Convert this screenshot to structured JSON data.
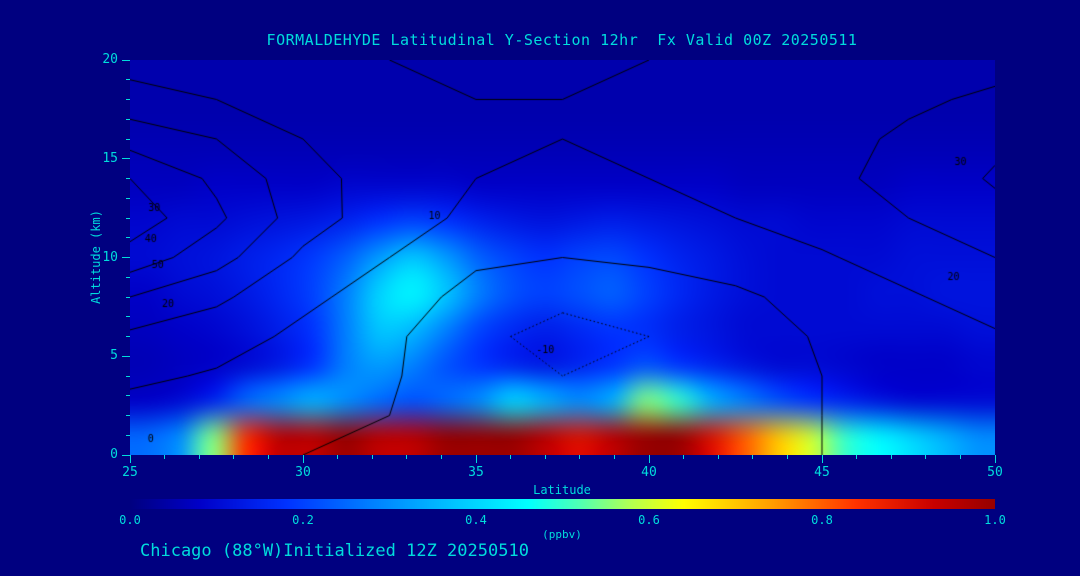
{
  "colors": {
    "background": "#000080",
    "text": "#00dcdc",
    "contour": "#000000"
  },
  "header": {
    "title": "FORMALDEHYDE Latitudinal Y-Section 12hr  Fx Valid 00Z 20250511"
  },
  "footer": {
    "annotation": "Chicago (88°W)Initialized 12Z 20250510"
  },
  "axes": {
    "x": {
      "label": "Latitude",
      "min": 25,
      "max": 50,
      "major_ticks": [
        25,
        30,
        35,
        40,
        45,
        50
      ],
      "minor_step": 1
    },
    "y": {
      "label": "Altitude (km)",
      "min": 0,
      "max": 20,
      "major_ticks": [
        0,
        5,
        10,
        15,
        20
      ],
      "minor_step": 1
    }
  },
  "colorbar": {
    "units": "(ppbv)",
    "tick_labels": [
      "0.0",
      "0.2",
      "0.4",
      "0.6",
      "0.8",
      "1.0"
    ],
    "min": 0,
    "max": 1
  },
  "chart_data": {
    "type": "heatmap",
    "title": "FORMALDEHYDE Latitudinal Y-Section 12hr Fx Valid 00Z 20250511",
    "xlabel": "Latitude",
    "ylabel": "Altitude (km)",
    "units": "ppbv",
    "xlim": [
      25,
      50
    ],
    "ylim": [
      0,
      20
    ],
    "value_range": [
      0.0,
      1.0
    ],
    "x_lat": [
      25,
      26,
      27,
      28,
      29,
      30,
      31,
      32,
      33,
      34,
      35,
      36,
      37,
      38,
      39,
      40,
      41,
      42,
      43,
      44,
      45,
      46,
      47,
      48,
      49,
      50
    ],
    "y_km": [
      0,
      2,
      4,
      6,
      8,
      10,
      12,
      14,
      16,
      18,
      20
    ],
    "values": [
      [
        0.25,
        0.3,
        0.55,
        0.85,
        0.95,
        0.95,
        1.0,
        0.95,
        0.95,
        1.0,
        1.0,
        1.0,
        0.95,
        0.9,
        0.95,
        1.0,
        1.0,
        0.9,
        0.8,
        0.7,
        0.6,
        0.5,
        0.45,
        0.4,
        0.35,
        0.3
      ],
      [
        0.08,
        0.1,
        0.15,
        0.25,
        0.3,
        0.35,
        0.3,
        0.25,
        0.22,
        0.25,
        0.3,
        0.4,
        0.35,
        0.3,
        0.35,
        0.55,
        0.5,
        0.35,
        0.28,
        0.22,
        0.18,
        0.15,
        0.12,
        0.1,
        0.1,
        0.1
      ],
      [
        0.06,
        0.07,
        0.08,
        0.1,
        0.13,
        0.18,
        0.28,
        0.32,
        0.28,
        0.22,
        0.18,
        0.15,
        0.13,
        0.15,
        0.18,
        0.22,
        0.18,
        0.15,
        0.12,
        0.1,
        0.1,
        0.09,
        0.08,
        0.08,
        0.08,
        0.09
      ],
      [
        0.07,
        0.08,
        0.09,
        0.11,
        0.14,
        0.18,
        0.28,
        0.38,
        0.36,
        0.28,
        0.2,
        0.16,
        0.14,
        0.16,
        0.18,
        0.17,
        0.14,
        0.12,
        0.1,
        0.1,
        0.1,
        0.1,
        0.1,
        0.1,
        0.1,
        0.11
      ],
      [
        0.08,
        0.1,
        0.11,
        0.13,
        0.16,
        0.2,
        0.28,
        0.4,
        0.45,
        0.38,
        0.28,
        0.22,
        0.2,
        0.22,
        0.24,
        0.2,
        0.16,
        0.13,
        0.11,
        0.1,
        0.1,
        0.1,
        0.11,
        0.11,
        0.12,
        0.12
      ],
      [
        0.1,
        0.11,
        0.12,
        0.14,
        0.16,
        0.19,
        0.24,
        0.32,
        0.38,
        0.32,
        0.24,
        0.2,
        0.18,
        0.2,
        0.21,
        0.18,
        0.15,
        0.13,
        0.11,
        0.1,
        0.1,
        0.1,
        0.1,
        0.11,
        0.11,
        0.11
      ],
      [
        0.09,
        0.1,
        0.1,
        0.11,
        0.12,
        0.13,
        0.15,
        0.18,
        0.2,
        0.18,
        0.15,
        0.13,
        0.12,
        0.13,
        0.14,
        0.13,
        0.12,
        0.11,
        0.1,
        0.1,
        0.09,
        0.09,
        0.09,
        0.1,
        0.1,
        0.1
      ],
      [
        0.07,
        0.07,
        0.08,
        0.08,
        0.08,
        0.08,
        0.09,
        0.09,
        0.09,
        0.09,
        0.08,
        0.08,
        0.08,
        0.08,
        0.08,
        0.08,
        0.08,
        0.08,
        0.07,
        0.07,
        0.07,
        0.07,
        0.07,
        0.08,
        0.08,
        0.08
      ],
      [
        0.06,
        0.06,
        0.06,
        0.06,
        0.06,
        0.06,
        0.06,
        0.06,
        0.06,
        0.06,
        0.06,
        0.06,
        0.06,
        0.06,
        0.06,
        0.06,
        0.06,
        0.06,
        0.06,
        0.06,
        0.06,
        0.06,
        0.06,
        0.06,
        0.06,
        0.06
      ],
      [
        0.05,
        0.05,
        0.05,
        0.05,
        0.05,
        0.05,
        0.05,
        0.05,
        0.05,
        0.05,
        0.05,
        0.05,
        0.05,
        0.05,
        0.05,
        0.05,
        0.05,
        0.05,
        0.05,
        0.05,
        0.05,
        0.05,
        0.05,
        0.05,
        0.05,
        0.05
      ],
      [
        0.05,
        0.05,
        0.05,
        0.05,
        0.05,
        0.05,
        0.05,
        0.05,
        0.05,
        0.05,
        0.05,
        0.05,
        0.05,
        0.05,
        0.05,
        0.05,
        0.05,
        0.05,
        0.05,
        0.05,
        0.05,
        0.05,
        0.05,
        0.05,
        0.05,
        0.05
      ]
    ],
    "colormap_stops": [
      [
        0.0,
        "#000080"
      ],
      [
        0.08,
        "#0000c8"
      ],
      [
        0.18,
        "#0032ff"
      ],
      [
        0.28,
        "#0080ff"
      ],
      [
        0.38,
        "#00c8ff"
      ],
      [
        0.46,
        "#00ffff"
      ],
      [
        0.52,
        "#50ffb4"
      ],
      [
        0.58,
        "#b4ff50"
      ],
      [
        0.64,
        "#ffff00"
      ],
      [
        0.74,
        "#ffa000"
      ],
      [
        0.84,
        "#ff3200"
      ],
      [
        0.93,
        "#c80000"
      ],
      [
        1.0,
        "#960000"
      ]
    ],
    "overlay_contours": {
      "x_lat": [
        25,
        27.5,
        30,
        32.5,
        35,
        37.5,
        40,
        42.5,
        45,
        47.5,
        50
      ],
      "y_km": [
        0,
        2,
        4,
        6,
        8,
        10,
        12,
        14,
        16,
        18,
        20
      ],
      "values": [
        [
          2,
          1,
          0,
          -1,
          -2,
          -3,
          -2,
          -1,
          0,
          1,
          2
        ],
        [
          6,
          4,
          2,
          0,
          -4,
          -6,
          -5,
          -2,
          0,
          2,
          4
        ],
        [
          12,
          9,
          5,
          1,
          -6,
          -10,
          -8,
          -4,
          0,
          3,
          6
        ],
        [
          18,
          14,
          8,
          2,
          -8,
          -13,
          -10,
          -5,
          1,
          5,
          9
        ],
        [
          30,
          22,
          12,
          6,
          -4,
          -8,
          -6,
          -2,
          4,
          9,
          14
        ],
        [
          46,
          34,
          18,
          10,
          2,
          0,
          2,
          5,
          9,
          14,
          20
        ],
        [
          56,
          42,
          25,
          14,
          8,
          6,
          7,
          10,
          14,
          20,
          27
        ],
        [
          50,
          38,
          24,
          15,
          10,
          9,
          10,
          13,
          17,
          24,
          31
        ],
        [
          36,
          30,
          20,
          14,
          11,
          10,
          11,
          13,
          16,
          22,
          28
        ],
        [
          24,
          20,
          16,
          12,
          10,
          10,
          10,
          12,
          14,
          18,
          22
        ],
        [
          16,
          14,
          12,
          10,
          9,
          9,
          10,
          11,
          12,
          14,
          16
        ]
      ],
      "levels": [
        -10,
        0,
        10,
        20,
        30,
        40,
        50
      ],
      "negative_style": "dotted",
      "labels": [
        {
          "text": "40",
          "lat": 25.6,
          "km": 10.9
        },
        {
          "text": "50",
          "lat": 25.8,
          "km": 9.6
        },
        {
          "text": "30",
          "lat": 25.7,
          "km": 12.5
        },
        {
          "text": "20",
          "lat": 26.1,
          "km": 7.6
        },
        {
          "text": "10",
          "lat": 33.8,
          "km": 12.1
        },
        {
          "text": "-10",
          "lat": 37.0,
          "km": 5.3
        },
        {
          "text": "0",
          "lat": 25.6,
          "km": 0.8
        },
        {
          "text": "30",
          "lat": 49.0,
          "km": 14.8
        },
        {
          "text": "20",
          "lat": 48.8,
          "km": 9.0
        }
      ]
    }
  }
}
